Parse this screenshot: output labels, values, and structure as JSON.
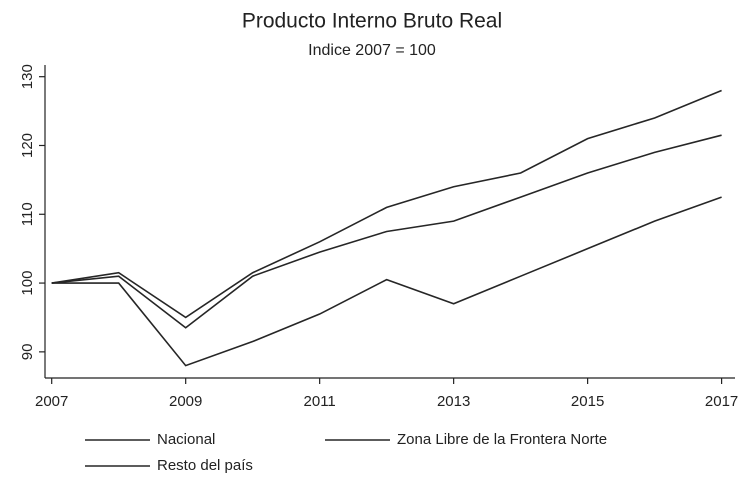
{
  "chart_data": {
    "type": "line",
    "title": "Producto Interno Bruto Real",
    "subtitle": "Indice 2007 = 100",
    "x": [
      2007,
      2008,
      2009,
      2010,
      2011,
      2012,
      2013,
      2014,
      2015,
      2016,
      2017
    ],
    "series": [
      {
        "name": "Nacional",
        "color": "#262626",
        "values": [
          100,
          101,
          93.5,
          101,
          104.5,
          107.5,
          109,
          112.5,
          116,
          119,
          121.5
        ]
      },
      {
        "name": "Zona Libre de la Frontera Norte",
        "color": "#262626",
        "values": [
          100,
          100,
          88,
          91.5,
          95.5,
          100.5,
          97,
          101,
          105,
          109,
          112.5
        ]
      },
      {
        "name": "Resto del país",
        "color": "#262626",
        "values": [
          100,
          101.5,
          95,
          101.5,
          106,
          111,
          114,
          116,
          121,
          124,
          128
        ]
      }
    ],
    "xlim": [
      2006.9,
      2017.2
    ],
    "xticks": [
      2007,
      2009,
      2011,
      2013,
      2015,
      2017
    ],
    "ylim": [
      86.2,
      131.7
    ],
    "yticks": [
      90,
      100,
      110,
      120,
      130
    ],
    "grid": false
  }
}
